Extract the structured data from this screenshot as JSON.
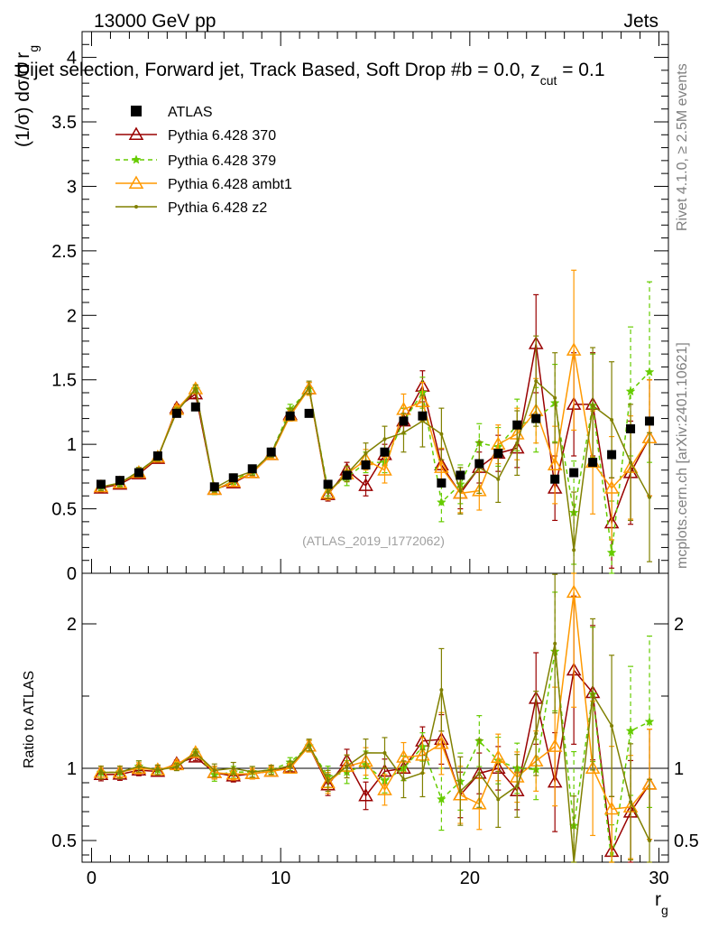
{
  "header": {
    "energy": "13000 GeV pp",
    "process": "Jets",
    "title": "Dijet selection, Forward jet, Track Based, Soft Drop #b = 0.0, z",
    "title_sub": "cut",
    "title_end": " = 0.1"
  },
  "side_labels": {
    "rivet": "Rivet 4.1.0, ≥ 2.5M events",
    "mcplots": "mcplots.cern.ch [arXiv:2401.10621]"
  },
  "watermark": "(ATLAS_2019_I1772062)",
  "chart_data": {
    "type": "line",
    "title": "Dijet selection, Forward jet, Track Based, Soft Drop #b = 0.0, z_cut = 0.1",
    "xlabel": "r",
    "xlabel_sub": "g",
    "ylabel": "(1/σ) dσ/d r",
    "ylabel_sub": "g",
    "ratio_ylabel": "Ratio to ATLAS",
    "xlim": [
      -0.5,
      30.5
    ],
    "ylim": [
      0,
      4.2
    ],
    "ratio_ylim": [
      0.35,
      2.35
    ],
    "x_ticks": [
      0,
      10,
      20,
      30
    ],
    "y_ticks": [
      0,
      0.5,
      1,
      1.5,
      2,
      2.5,
      3,
      3.5,
      4
    ],
    "y_tick_labels": [
      "0",
      "0.5",
      "1",
      "1.5",
      "2",
      "2.5",
      "3",
      "3.5",
      "4"
    ],
    "ratio_ticks": [
      0.5,
      1,
      2
    ],
    "ratio_tick_labels": [
      "0.5",
      "1",
      "2"
    ],
    "x": [
      0.5,
      1.5,
      2.5,
      3.5,
      4.5,
      5.5,
      6.5,
      7.5,
      8.5,
      9.5,
      10.5,
      11.5,
      12.5,
      13.5,
      14.5,
      15.5,
      16.5,
      17.5,
      18.5,
      19.5,
      20.5,
      21.5,
      22.5,
      23.5,
      24.5,
      25.5,
      26.5,
      27.5,
      28.5,
      29.5
    ],
    "reference": {
      "name": "ATLAS",
      "values": [
        0.69,
        0.72,
        0.78,
        0.91,
        1.24,
        1.29,
        0.67,
        0.74,
        0.81,
        0.94,
        1.22,
        1.24,
        0.69,
        0.76,
        0.84,
        0.94,
        1.18,
        1.22,
        0.7,
        0.76,
        0.85,
        0.93,
        1.15,
        1.2,
        0.73,
        0.78,
        0.86,
        0.92,
        1.12,
        1.18
      ]
    },
    "series": [
      {
        "name": "Pythia 6.428 370",
        "color": "#990000",
        "marker": "triangle-open",
        "dash": "solid",
        "values": [
          0.66,
          0.69,
          0.77,
          0.89,
          1.28,
          1.39,
          0.65,
          0.7,
          0.78,
          0.92,
          1.23,
          1.43,
          0.61,
          0.8,
          0.68,
          0.92,
          1.18,
          1.45,
          0.84,
          0.62,
          0.82,
          0.93,
          0.97,
          1.78,
          0.66,
          1.31,
          1.31,
          0.39,
          0.78,
          1.05
        ],
        "errors": [
          0.03,
          0.03,
          0.03,
          0.03,
          0.03,
          0.03,
          0.03,
          0.03,
          0.03,
          0.03,
          0.04,
          0.05,
          0.05,
          0.06,
          0.08,
          0.08,
          0.1,
          0.12,
          0.12,
          0.12,
          0.12,
          0.14,
          0.15,
          0.38,
          0.25,
          0.4,
          0.4,
          0.35,
          0.4,
          0.45
        ]
      },
      {
        "name": "Pythia 6.428 379",
        "color": "#66cc00",
        "marker": "star",
        "dash": "dashed",
        "values": [
          0.67,
          0.7,
          0.79,
          0.9,
          1.26,
          1.43,
          0.64,
          0.72,
          0.79,
          0.93,
          1.27,
          1.43,
          0.65,
          0.74,
          0.86,
          0.86,
          1.18,
          1.4,
          0.55,
          0.69,
          1.01,
          0.98,
          1.15,
          1.19,
          1.32,
          0.47,
          1.3,
          0.16,
          1.41,
          1.56
        ],
        "errors": [
          0.03,
          0.03,
          0.03,
          0.03,
          0.03,
          0.03,
          0.03,
          0.03,
          0.03,
          0.03,
          0.04,
          0.05,
          0.05,
          0.06,
          0.08,
          0.08,
          0.1,
          0.12,
          0.15,
          0.15,
          0.15,
          0.15,
          0.2,
          0.25,
          0.3,
          0.4,
          0.4,
          0.4,
          0.5,
          0.7
        ]
      },
      {
        "name": "Pythia 6.428 ambt1",
        "color": "#ff9900",
        "marker": "triangle-open",
        "dash": "solid",
        "values": [
          0.67,
          0.7,
          0.78,
          0.9,
          1.27,
          1.43,
          0.65,
          0.71,
          0.78,
          0.92,
          1.22,
          1.43,
          0.62,
          0.77,
          0.88,
          0.8,
          1.27,
          1.33,
          0.82,
          0.62,
          0.64,
          1.0,
          1.08,
          1.26,
          0.84,
          1.73,
          0.86,
          0.66,
          0.82,
          1.05
        ],
        "errors": [
          0.03,
          0.03,
          0.03,
          0.03,
          0.03,
          0.03,
          0.03,
          0.03,
          0.03,
          0.03,
          0.04,
          0.05,
          0.05,
          0.06,
          0.08,
          0.1,
          0.12,
          0.15,
          0.15,
          0.15,
          0.15,
          0.15,
          0.2,
          0.25,
          0.3,
          0.62,
          0.4,
          0.4,
          0.4,
          0.45
        ]
      },
      {
        "name": "Pythia 6.428 z2",
        "color": "#808000",
        "marker": "dot",
        "dash": "solid",
        "values": [
          0.67,
          0.7,
          0.79,
          0.9,
          1.25,
          1.43,
          0.66,
          0.74,
          0.79,
          0.93,
          1.24,
          1.44,
          0.63,
          0.77,
          0.93,
          1.04,
          1.09,
          1.18,
          1.08,
          0.64,
          0.82,
          0.73,
          1.01,
          1.49,
          1.36,
          0.18,
          1.3,
          1.19,
          0.86,
          0.59
        ],
        "errors": [
          0.03,
          0.03,
          0.03,
          0.03,
          0.03,
          0.03,
          0.03,
          0.03,
          0.03,
          0.03,
          0.04,
          0.05,
          0.05,
          0.06,
          0.08,
          0.1,
          0.15,
          0.2,
          0.2,
          0.18,
          0.2,
          0.18,
          0.25,
          0.35,
          0.35,
          0.45,
          0.45,
          0.45,
          0.45,
          0.5
        ]
      }
    ]
  }
}
